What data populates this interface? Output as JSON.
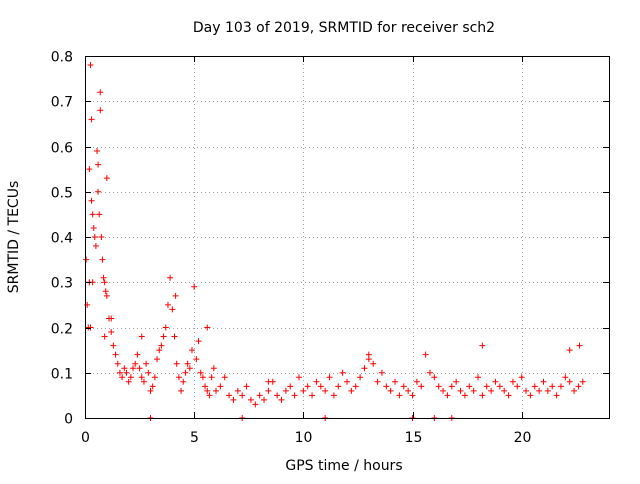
{
  "chart_data": {
    "type": "scatter",
    "title": "Day 103 of 2019, SRMTID for receiver sch2",
    "xlabel": "GPS time / hours",
    "ylabel": "SRMTID / TECUs",
    "xlim": [
      0,
      24
    ],
    "ylim": [
      0,
      0.8
    ],
    "xticks": [
      0,
      5,
      10,
      15,
      20
    ],
    "yticks": [
      0,
      0.1,
      0.2,
      0.3,
      0.4,
      0.5,
      0.6,
      0.7,
      0.8
    ],
    "xtick_labels": [
      "0",
      "5",
      "10",
      "15",
      "20"
    ],
    "ytick_labels": [
      "0",
      "0.1",
      "0.2",
      "0.3",
      "0.4",
      "0.5",
      "0.6",
      "0.7",
      "0.8"
    ],
    "grid": true,
    "marker": "+",
    "color": "#ff0000",
    "series": [
      {
        "name": "sch2",
        "x": [
          0.05,
          0.1,
          0.15,
          0.2,
          0.25,
          0.3,
          0.35,
          0.4,
          0.45,
          0.5,
          0.55,
          0.6,
          0.65,
          0.7,
          0.75,
          0.8,
          0.85,
          0.9,
          0.95,
          1.0,
          1.1,
          1.2,
          1.3,
          1.4,
          1.5,
          1.6,
          1.7,
          1.8,
          1.9,
          2.0,
          2.1,
          2.2,
          2.3,
          2.4,
          2.5,
          2.6,
          2.7,
          2.8,
          2.9,
          3.0,
          3.1,
          3.2,
          3.3,
          3.4,
          3.5,
          3.6,
          3.7,
          3.8,
          3.9,
          4.0,
          4.1,
          4.2,
          4.3,
          4.4,
          4.5,
          4.6,
          4.7,
          4.8,
          4.9,
          5.0,
          5.1,
          5.2,
          5.3,
          5.4,
          5.5,
          5.6,
          5.7,
          5.8,
          5.9,
          6.0,
          6.2,
          6.4,
          6.6,
          6.8,
          7.0,
          7.2,
          7.4,
          7.6,
          7.8,
          8.0,
          8.2,
          8.4,
          8.6,
          8.8,
          9.0,
          9.2,
          9.4,
          9.6,
          9.8,
          10.0,
          10.2,
          10.4,
          10.6,
          10.8,
          11.0,
          11.2,
          11.4,
          11.6,
          11.8,
          12.0,
          12.2,
          12.4,
          12.6,
          12.8,
          13.0,
          13.2,
          13.4,
          13.6,
          13.8,
          14.0,
          14.2,
          14.4,
          14.6,
          14.8,
          15.0,
          15.2,
          15.4,
          15.6,
          15.8,
          16.0,
          16.2,
          16.4,
          16.6,
          16.8,
          17.0,
          17.2,
          17.4,
          17.6,
          17.8,
          18.0,
          18.2,
          18.4,
          18.6,
          18.8,
          19.0,
          19.2,
          19.4,
          19.6,
          19.8,
          20.0,
          20.2,
          20.4,
          20.6,
          20.8,
          21.0,
          21.2,
          21.4,
          21.6,
          21.8,
          22.0,
          22.2,
          22.4,
          22.6,
          22.8,
          0.2,
          0.25,
          0.3,
          0.9,
          1.0,
          3.0,
          7.2,
          11.0,
          15.0,
          16.0,
          16.8,
          0.35,
          0.6,
          0.7,
          1.2,
          2.6,
          4.15,
          5.6,
          8.4,
          13.0,
          18.2,
          22.2,
          22.65
        ],
        "y": [
          0.35,
          0.25,
          0.2,
          0.55,
          0.78,
          0.66,
          0.45,
          0.42,
          0.4,
          0.38,
          0.59,
          0.5,
          0.45,
          0.72,
          0.4,
          0.35,
          0.31,
          0.3,
          0.28,
          0.27,
          0.22,
          0.19,
          0.16,
          0.14,
          0.12,
          0.1,
          0.09,
          0.11,
          0.1,
          0.08,
          0.09,
          0.11,
          0.12,
          0.14,
          0.11,
          0.09,
          0.08,
          0.12,
          0.1,
          0.06,
          0.07,
          0.09,
          0.13,
          0.15,
          0.16,
          0.18,
          0.2,
          0.25,
          0.31,
          0.24,
          0.18,
          0.12,
          0.09,
          0.06,
          0.08,
          0.1,
          0.12,
          0.11,
          0.15,
          0.29,
          0.13,
          0.17,
          0.1,
          0.09,
          0.07,
          0.06,
          0.05,
          0.09,
          0.11,
          0.06,
          0.07,
          0.09,
          0.05,
          0.04,
          0.06,
          0.05,
          0.07,
          0.04,
          0.03,
          0.05,
          0.04,
          0.06,
          0.08,
          0.05,
          0.04,
          0.06,
          0.07,
          0.05,
          0.09,
          0.06,
          0.07,
          0.05,
          0.08,
          0.07,
          0.06,
          0.09,
          0.05,
          0.07,
          0.1,
          0.08,
          0.06,
          0.07,
          0.09,
          0.11,
          0.13,
          0.12,
          0.08,
          0.1,
          0.07,
          0.06,
          0.08,
          0.05,
          0.07,
          0.06,
          0.05,
          0.08,
          0.07,
          0.14,
          0.1,
          0.09,
          0.07,
          0.06,
          0.05,
          0.07,
          0.08,
          0.06,
          0.05,
          0.07,
          0.06,
          0.09,
          0.05,
          0.07,
          0.06,
          0.08,
          0.07,
          0.06,
          0.05,
          0.08,
          0.07,
          0.09,
          0.06,
          0.05,
          0.07,
          0.06,
          0.08,
          0.06,
          0.07,
          0.05,
          0.07,
          0.09,
          0.08,
          0.06,
          0.07,
          0.08,
          0.3,
          0.2,
          0.48,
          0.18,
          0.53,
          0.0,
          0.0,
          0.0,
          0.0,
          0.0,
          0.0,
          0.3,
          0.56,
          0.68,
          0.22,
          0.18,
          0.27,
          0.2,
          0.08,
          0.14,
          0.16,
          0.15,
          0.16
        ]
      }
    ]
  }
}
